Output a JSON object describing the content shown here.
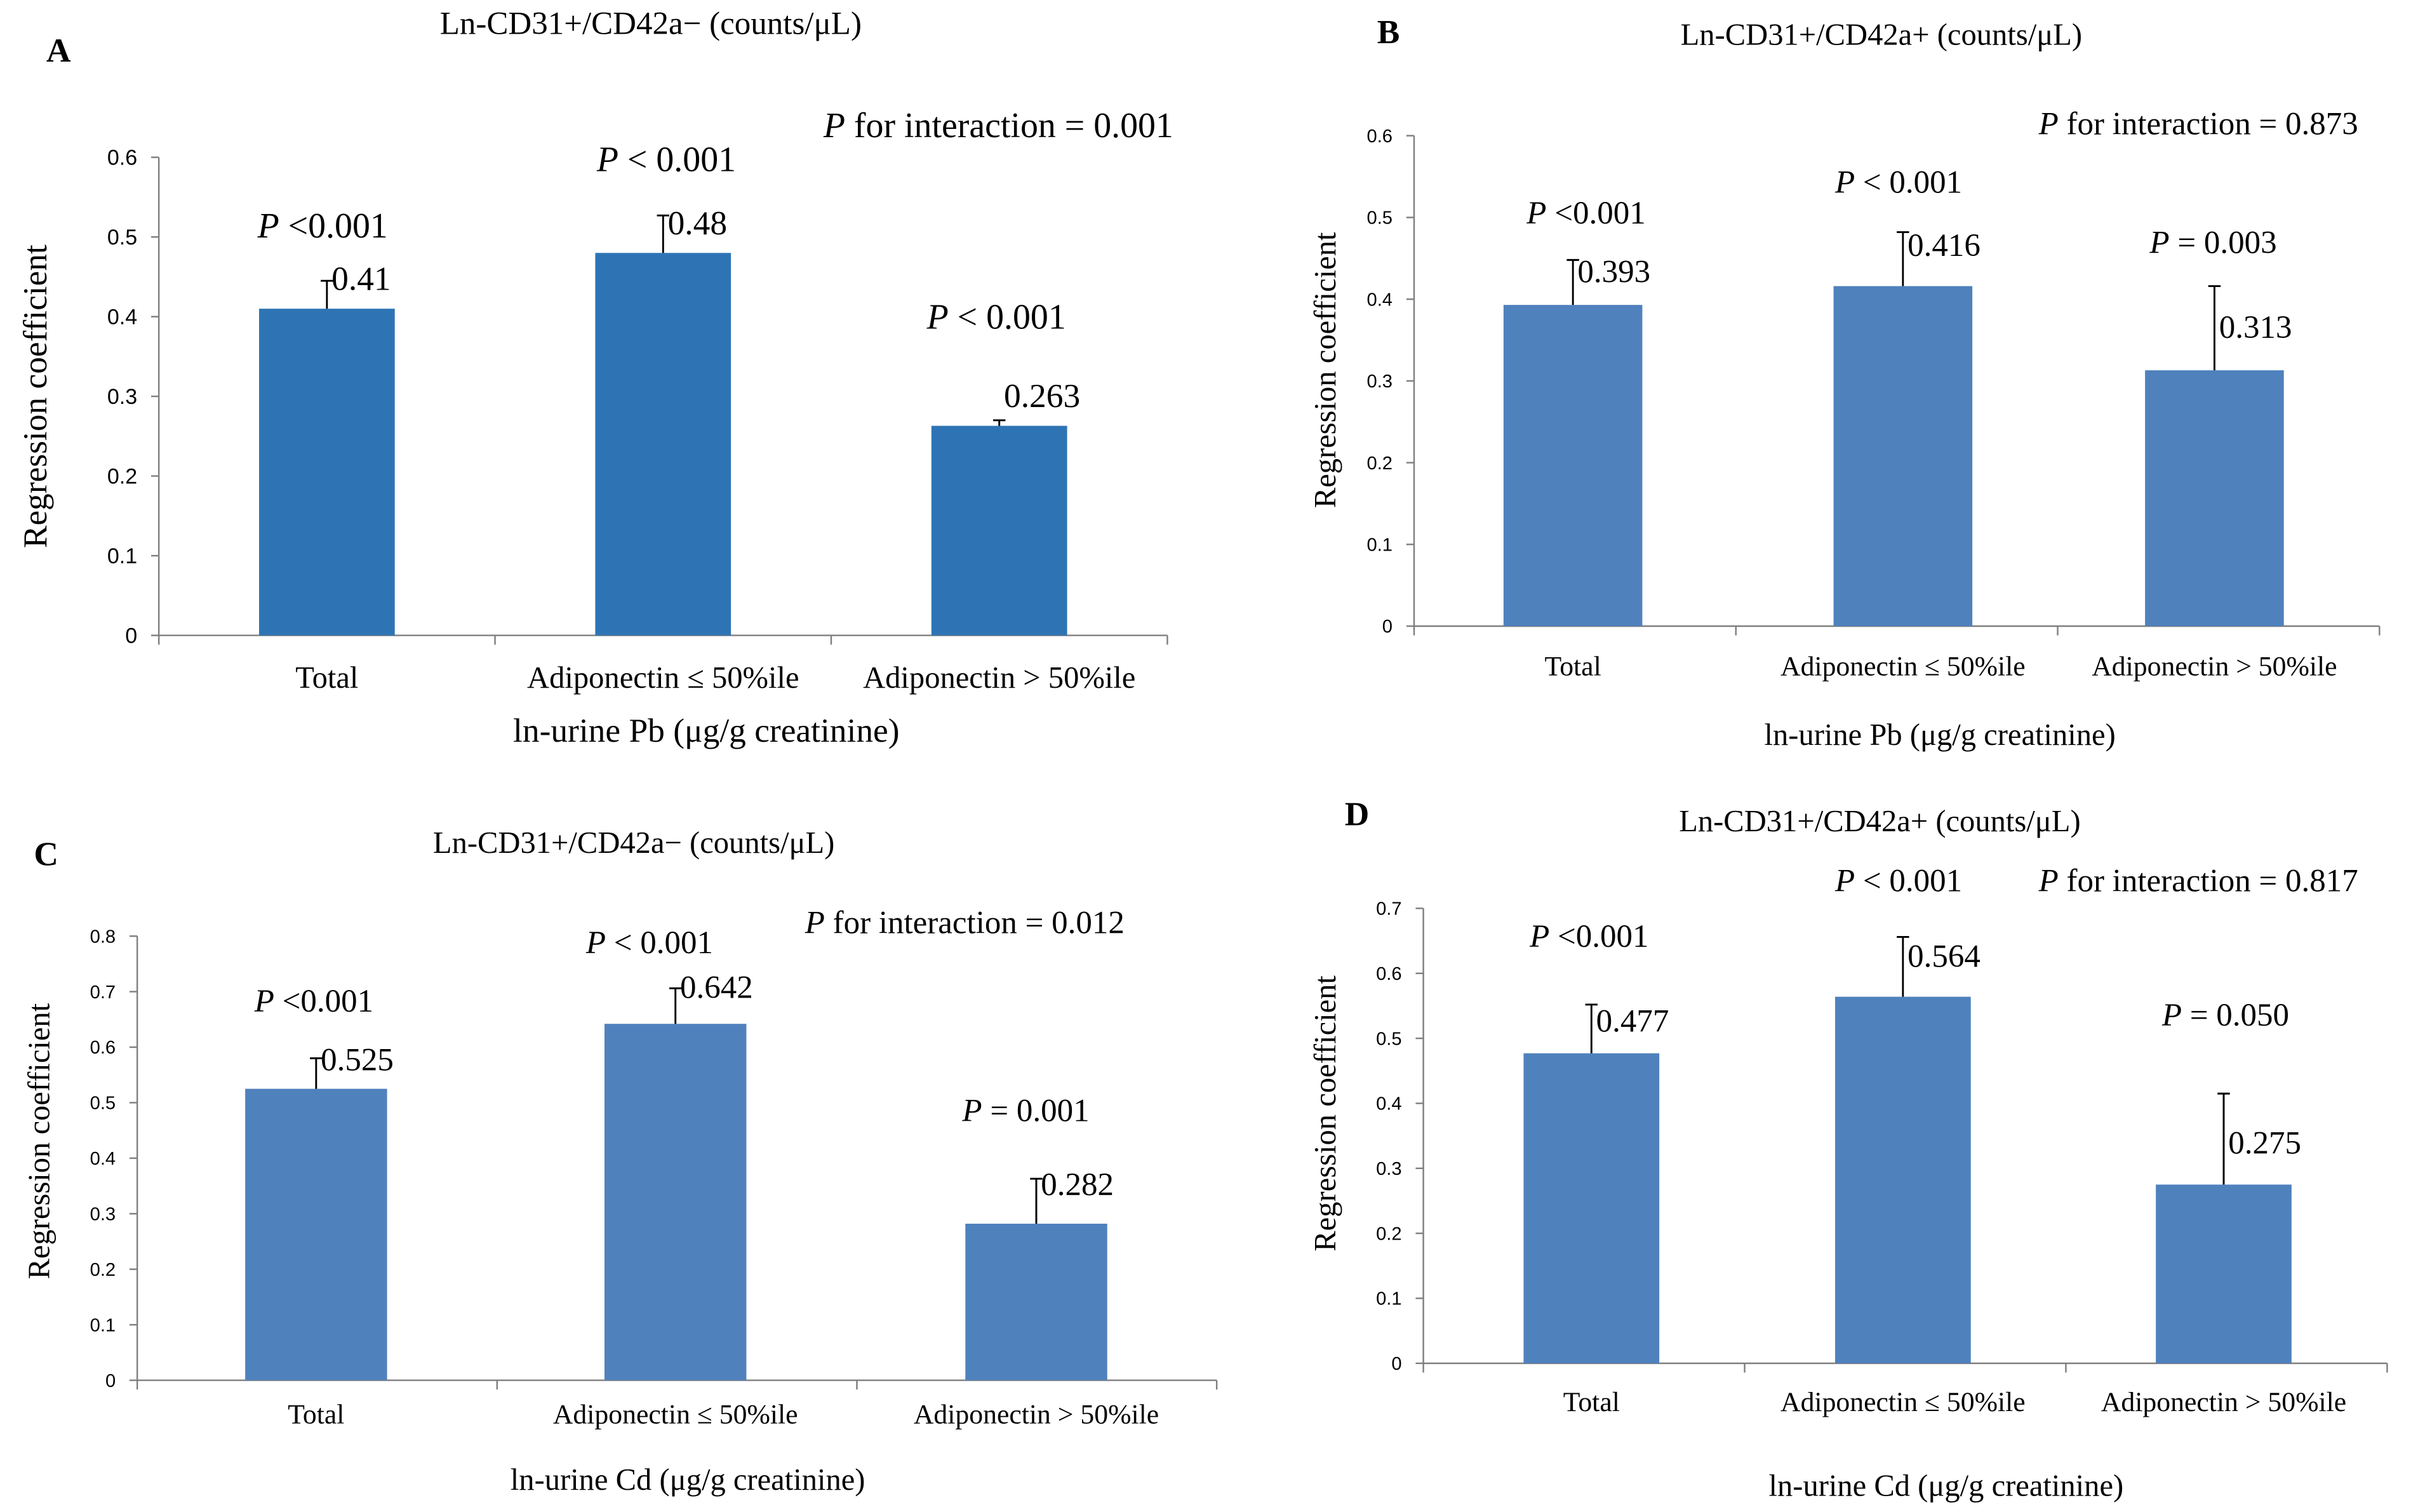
{
  "colors": {
    "bar_dark": "#2E74B5",
    "bar_light": "#4F81BD",
    "axis": "#7F7F7F",
    "text": "#000000"
  },
  "chart_data": [
    {
      "type": "bar",
      "panel_letter": "A",
      "title": "Ln-CD31+/CD42a− (counts/μL)",
      "xlabel": "ln-urine Pb (μg/g creatinine)",
      "ylabel": "Regression coefficient",
      "ylim": [
        0,
        0.6
      ],
      "yticks": [
        "0",
        "0.1",
        "0.2",
        "0.3",
        "0.4",
        "0.5",
        "0.6"
      ],
      "categories": [
        "Total",
        "Adiponectin ≤ 50%ile",
        "Adiponectin > 50%ile"
      ],
      "values": [
        0.41,
        0.48,
        0.263
      ],
      "value_labels": [
        "0.41",
        "0.48",
        "0.263"
      ],
      "error_upper": [
        0.445,
        0.527,
        0.27
      ],
      "p_labels": [
        {
          "prefix": "P",
          "text": " <0.001"
        },
        {
          "prefix": "P",
          "text": " < 0.001"
        },
        {
          "prefix": "P",
          "text": " < 0.001"
        }
      ],
      "interaction": {
        "prefix": "P",
        "text": "  for interaction = 0.001"
      },
      "grid": false,
      "bar_color": "#2E74B5"
    },
    {
      "type": "bar",
      "panel_letter": "B",
      "title": "Ln-CD31+/CD42a+ (counts/μL)",
      "xlabel": "ln-urine Pb (μg/g creatinine)",
      "ylabel": "Regression coefficient",
      "ylim": [
        0,
        0.6
      ],
      "yticks": [
        "0",
        "0.1",
        "0.2",
        "0.3",
        "0.4",
        "0.5",
        "0.6"
      ],
      "categories": [
        "Total",
        "Adiponectin ≤ 50%ile",
        "Adiponectin > 50%ile"
      ],
      "values": [
        0.393,
        0.416,
        0.313
      ],
      "value_labels": [
        "0.393",
        "0.416",
        "0.313"
      ],
      "error_upper": [
        0.448,
        0.482,
        0.416
      ],
      "p_labels": [
        {
          "prefix": "P",
          "text": " <0.001"
        },
        {
          "prefix": "P",
          "text": " < 0.001"
        },
        {
          "prefix": "P",
          "text": " = 0.003"
        }
      ],
      "interaction": {
        "prefix": "P",
        "text": "  for interaction = 0.873"
      },
      "grid": false,
      "bar_color": "#4F81BD"
    },
    {
      "type": "bar",
      "panel_letter": "C",
      "title": "Ln-CD31+/CD42a− (counts/μL)",
      "xlabel": "ln-urine Cd (μg/g  creatinine)",
      "ylabel": "Regression coefficient",
      "ylim": [
        0,
        0.8
      ],
      "yticks": [
        "0",
        "0.1",
        "0.2",
        "0.3",
        "0.4",
        "0.5",
        "0.6",
        "0.7",
        "0.8"
      ],
      "categories": [
        "Total",
        "Adiponectin ≤ 50%ile",
        "Adiponectin > 50%ile"
      ],
      "values": [
        0.525,
        0.642,
        0.282
      ],
      "value_labels": [
        "0.525",
        "0.642",
        "0.282"
      ],
      "error_upper": [
        0.58,
        0.706,
        0.363
      ],
      "p_labels": [
        {
          "prefix": "P",
          "text": " <0.001"
        },
        {
          "prefix": "P",
          "text": " < 0.001"
        },
        {
          "prefix": "P",
          "text": " = 0.001"
        }
      ],
      "interaction": {
        "prefix": "P",
        "text": "  for interaction = 0.012"
      },
      "grid": false,
      "bar_color": "#4F81BD"
    },
    {
      "type": "bar",
      "panel_letter": "D",
      "title": "Ln-CD31+/CD42a+ (counts/μL)",
      "xlabel": "ln-urine Cd (μg/g  creatinine)",
      "ylabel": "Regression coefficient",
      "ylim": [
        0,
        0.7
      ],
      "yticks": [
        "0",
        "0.1",
        "0.2",
        "0.3",
        "0.4",
        "0.5",
        "0.6",
        "0.7"
      ],
      "categories": [
        "Total",
        "Adiponectin ≤ 50%ile",
        "Adiponectin > 50%ile"
      ],
      "values": [
        0.477,
        0.564,
        0.275
      ],
      "value_labels": [
        "0.477",
        "0.564",
        "0.275"
      ],
      "error_upper": [
        0.552,
        0.656,
        0.415
      ],
      "p_labels": [
        {
          "prefix": "P",
          "text": " <0.001"
        },
        {
          "prefix": "P",
          "text": " < 0.001"
        },
        {
          "prefix": "P",
          "text": " = 0.050"
        }
      ],
      "interaction": {
        "prefix": "P",
        "text": "  for interaction = 0.817"
      },
      "grid": false,
      "bar_color": "#4F81BD"
    }
  ]
}
